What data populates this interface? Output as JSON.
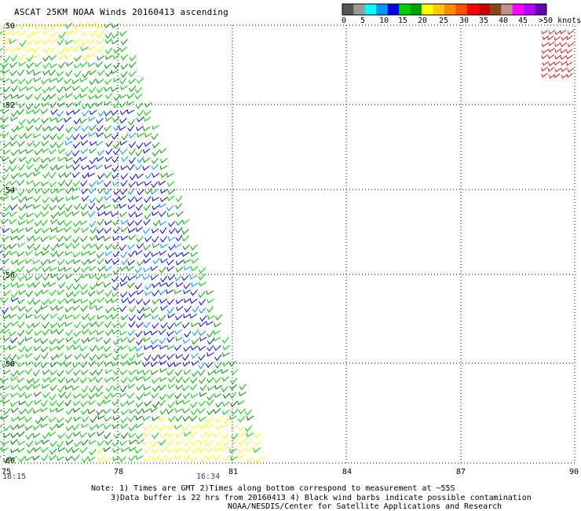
{
  "title": "ASCAT 25KM NOAA Winds 20160413 ascending",
  "color_scale": {
    "colors": [
      "#555555",
      "#9a9a9a",
      "#00ffff",
      "#0096ff",
      "#0000e6",
      "#00d000",
      "#00a000",
      "#ffff00",
      "#ffc800",
      "#ff8c00",
      "#ff5000",
      "#ff0000",
      "#c80000",
      "#8b4513",
      "#c09090",
      "#ff00ff",
      "#b400ff",
      "#6400b4"
    ],
    "labels": [
      "0",
      "5",
      "10",
      "15",
      "20",
      "25",
      "30",
      "35",
      "40",
      "45",
      ">50 knots"
    ]
  },
  "map": {
    "lat_labels": [
      "50",
      "52",
      "54",
      "56",
      "58",
      "60"
    ],
    "lon_labels": [
      "75",
      "78",
      "81",
      "84",
      "87",
      "90"
    ],
    "times": [
      "18:15",
      "16:34"
    ]
  },
  "notes": [
    "Note: 1) Times are GMT 2)Times along bottom correspond to measurement at ~55S",
    "3)Data buffer is 22 hrs from 20160413 4) Black wind barbs indicate possible contamination",
    "NOAA/NESDIS/Center for Satellite Applications and Research"
  ]
}
